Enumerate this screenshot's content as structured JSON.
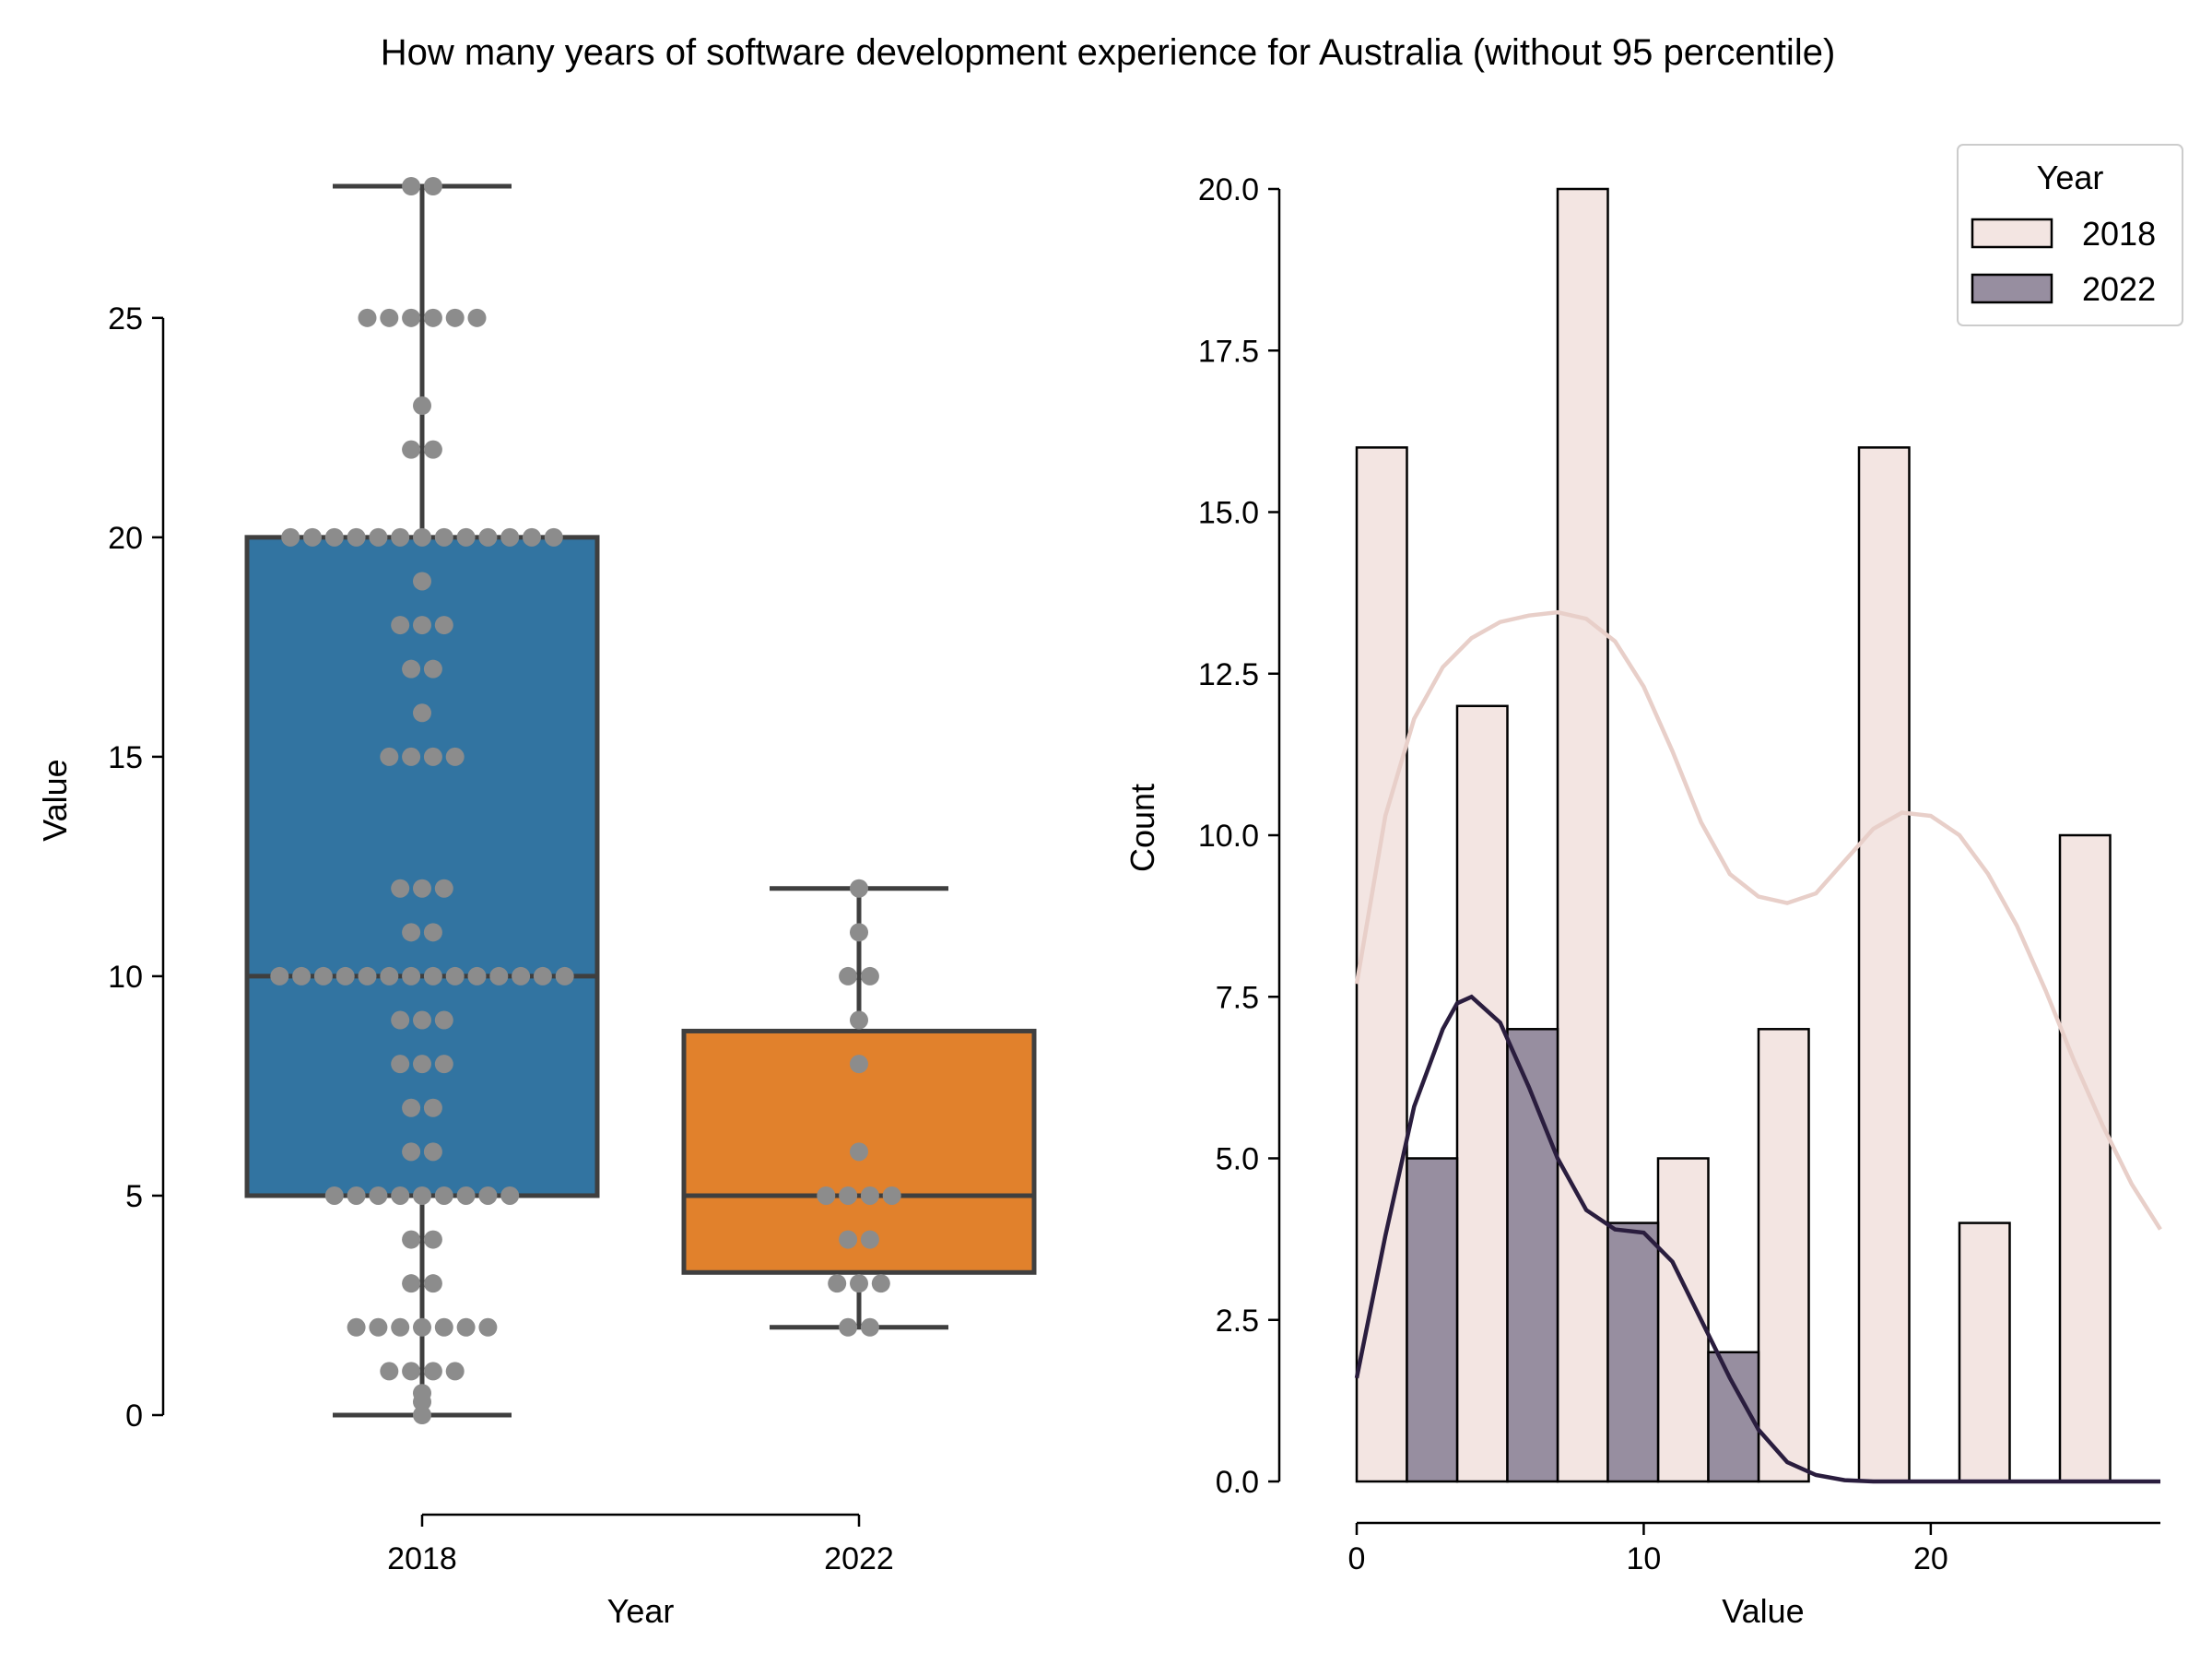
{
  "title": "How many years of software development experience for Australia (without 95 percentile)",
  "chart_data": [
    {
      "type": "box",
      "xlabel": "Year",
      "ylabel": "Value",
      "categories": [
        "2018",
        "2022"
      ],
      "ylim": [
        0,
        28
      ],
      "yticks": [
        0,
        5,
        10,
        15,
        20,
        25
      ],
      "box_colors": [
        "#3274a1",
        "#e1812c"
      ],
      "point_color": "#8c8c8c",
      "boxes": [
        {
          "name": "2018",
          "q1": 5,
          "median": 10,
          "q3": 20,
          "whisker_low": 0,
          "whisker_high": 28
        },
        {
          "name": "2022",
          "q1": 3.25,
          "median": 5,
          "q3": 8.75,
          "whisker_low": 2,
          "whisker_high": 12
        }
      ],
      "points": [
        {
          "value": 28,
          "count": 2,
          "group": 0
        },
        {
          "value": 25,
          "count": 6,
          "group": 0
        },
        {
          "value": 23,
          "count": 1,
          "group": 0
        },
        {
          "value": 22,
          "count": 2,
          "group": 0
        },
        {
          "value": 20,
          "count": 13,
          "group": 0
        },
        {
          "value": 19,
          "count": 1,
          "group": 0
        },
        {
          "value": 18,
          "count": 3,
          "group": 0
        },
        {
          "value": 17,
          "count": 2,
          "group": 0
        },
        {
          "value": 16,
          "count": 1,
          "group": 0
        },
        {
          "value": 15,
          "count": 4,
          "group": 0
        },
        {
          "value": 12,
          "count": 3,
          "group": 0
        },
        {
          "value": 11,
          "count": 2,
          "group": 0
        },
        {
          "value": 10,
          "count": 14,
          "group": 0
        },
        {
          "value": 9,
          "count": 3,
          "group": 0
        },
        {
          "value": 8,
          "count": 3,
          "group": 0
        },
        {
          "value": 7,
          "count": 2,
          "group": 0
        },
        {
          "value": 6,
          "count": 2,
          "group": 0
        },
        {
          "value": 5,
          "count": 9,
          "group": 0
        },
        {
          "value": 4,
          "count": 2,
          "group": 0
        },
        {
          "value": 3,
          "count": 2,
          "group": 0
        },
        {
          "value": 2,
          "count": 7,
          "group": 0
        },
        {
          "value": 1,
          "count": 4,
          "group": 0
        },
        {
          "value": 0.5,
          "count": 1,
          "group": 0
        },
        {
          "value": 0.3,
          "count": 1,
          "group": 0
        },
        {
          "value": 0,
          "count": 1,
          "group": 0
        },
        {
          "value": 12,
          "count": 1,
          "group": 1
        },
        {
          "value": 11,
          "count": 1,
          "group": 1
        },
        {
          "value": 10,
          "count": 2,
          "group": 1
        },
        {
          "value": 9,
          "count": 1,
          "group": 1
        },
        {
          "value": 8,
          "count": 1,
          "group": 1
        },
        {
          "value": 6,
          "count": 1,
          "group": 1
        },
        {
          "value": 5,
          "count": 4,
          "group": 1
        },
        {
          "value": 4,
          "count": 2,
          "group": 1
        },
        {
          "value": 3,
          "count": 3,
          "group": 1
        },
        {
          "value": 2,
          "count": 2,
          "group": 1
        }
      ]
    },
    {
      "type": "bar",
      "subtype": "histogram",
      "xlabel": "Value",
      "ylabel": "Count",
      "xlim": [
        0,
        28
      ],
      "ylim": [
        0,
        20
      ],
      "xticks": [
        0,
        10,
        20
      ],
      "yticks": [
        "0.0",
        "2.5",
        "5.0",
        "7.5",
        "10.0",
        "12.5",
        "15.0",
        "17.5",
        "20.0"
      ],
      "legend": {
        "title": "Year",
        "position": "top-right"
      },
      "series": [
        {
          "name": "2018",
          "color": "#f3e5e2",
          "bins": [
            {
              "x0": 0,
              "x1": 1.75,
              "value": 16
            },
            {
              "x0": 3.5,
              "x1": 5.25,
              "value": 12
            },
            {
              "x0": 7,
              "x1": 8.75,
              "value": 20
            },
            {
              "x0": 10.5,
              "x1": 12.25,
              "value": 5
            },
            {
              "x0": 14,
              "x1": 15.75,
              "value": 7
            },
            {
              "x0": 17.5,
              "x1": 19.25,
              "value": 16
            },
            {
              "x0": 21,
              "x1": 22.75,
              "value": 4
            },
            {
              "x0": 24.5,
              "x1": 26.25,
              "value": 10
            }
          ],
          "kde": {
            "color": "#e8cfc9",
            "points": [
              [
                0,
                7.7
              ],
              [
                1,
                10.3
              ],
              [
                2,
                11.8
              ],
              [
                3,
                12.6
              ],
              [
                4,
                13.05
              ],
              [
                5,
                13.3
              ],
              [
                6,
                13.4
              ],
              [
                7,
                13.45
              ],
              [
                8,
                13.35
              ],
              [
                9,
                13.0
              ],
              [
                10,
                12.3
              ],
              [
                11,
                11.3
              ],
              [
                12,
                10.2
              ],
              [
                13,
                9.4
              ],
              [
                14,
                9.05
              ],
              [
                15,
                8.95
              ],
              [
                16,
                9.1
              ],
              [
                17,
                9.6
              ],
              [
                18,
                10.1
              ],
              [
                19,
                10.35
              ],
              [
                20,
                10.3
              ],
              [
                21,
                10.0
              ],
              [
                22,
                9.4
              ],
              [
                23,
                8.6
              ],
              [
                24,
                7.6
              ],
              [
                25,
                6.5
              ],
              [
                26,
                5.5
              ],
              [
                27,
                4.6
              ],
              [
                28,
                3.9
              ]
            ]
          }
        },
        {
          "name": "2022",
          "color": "#978ea0",
          "bins": [
            {
              "x0": 1.75,
              "x1": 3.5,
              "value": 5
            },
            {
              "x0": 5.25,
              "x1": 7,
              "value": 7
            },
            {
              "x0": 8.75,
              "x1": 10.5,
              "value": 4
            },
            {
              "x0": 12.25,
              "x1": 14,
              "value": 2
            }
          ],
          "kde": {
            "color": "#2a1d3e",
            "points": [
              [
                0,
                1.6
              ],
              [
                1,
                3.8
              ],
              [
                2,
                5.8
              ],
              [
                3,
                7.0
              ],
              [
                3.5,
                7.4
              ],
              [
                4,
                7.5
              ],
              [
                5,
                7.1
              ],
              [
                6,
                6.1
              ],
              [
                7,
                5.0
              ],
              [
                8,
                4.2
              ],
              [
                9,
                3.9
              ],
              [
                10,
                3.85
              ],
              [
                11,
                3.4
              ],
              [
                12,
                2.5
              ],
              [
                13,
                1.6
              ],
              [
                14,
                0.8
              ],
              [
                15,
                0.3
              ],
              [
                16,
                0.1
              ],
              [
                17,
                0.02
              ],
              [
                18,
                0
              ],
              [
                28,
                0
              ]
            ]
          }
        }
      ]
    }
  ]
}
